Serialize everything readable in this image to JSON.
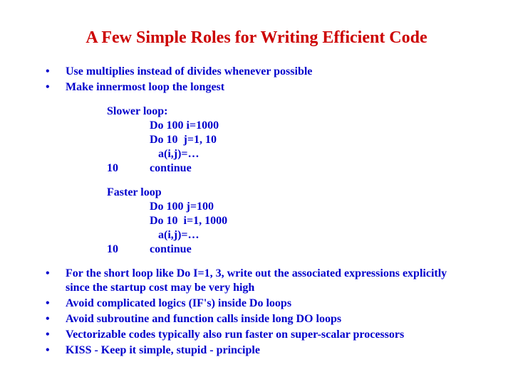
{
  "colors": {
    "title": "#cc0000",
    "body": "#0000cc",
    "background": "#ffffff"
  },
  "typography": {
    "family": "Times New Roman",
    "title_size": 24,
    "body_size": 16,
    "weight": "bold"
  },
  "title": "A Few Simple Roles for Writing Efficient Code",
  "top_bullets": [
    "Use multiplies instead of divides whenever possible",
    "Make innermost loop the longest"
  ],
  "slower": {
    "header": "Slower loop:",
    "lines": [
      "Do 100 i=1000",
      "Do 10  j=1, 10",
      "   a(i,j)=…"
    ],
    "label": "10",
    "cont": "continue"
  },
  "faster": {
    "header": "Faster loop",
    "lines": [
      "Do 100 j=100",
      "Do 10  i=1, 1000",
      "   a(i,j)=…"
    ],
    "label": "10",
    "cont": "continue"
  },
  "bottom_bullets": [
    "For the short loop like Do I=1, 3, write out the associated expressions explicitly since the startup cost may be very high",
    "Avoid complicated logics (IF's) inside Do loops",
    "Avoid subroutine and function calls inside long DO loops",
    "Vectorizable codes typically also run faster on super-scalar processors",
    "KISS - Keep it simple, stupid - principle"
  ]
}
